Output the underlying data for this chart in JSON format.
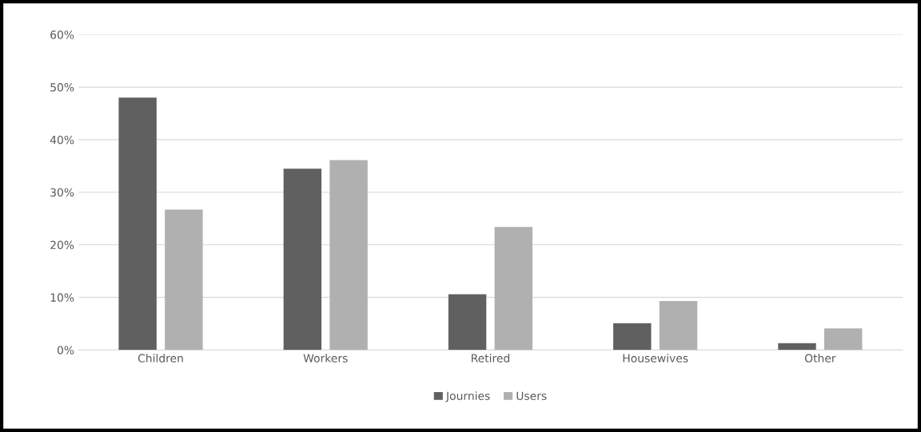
{
  "chart_data": {
    "type": "bar",
    "categories": [
      "Children",
      "Workers",
      "Retired",
      "Housewives",
      "Other"
    ],
    "series": [
      {
        "name": "Journies",
        "color": "#606060",
        "values": [
          48,
          34.5,
          10.6,
          5.1,
          1.3
        ]
      },
      {
        "name": "Users",
        "color": "#b0b0b0",
        "values": [
          26.7,
          36.1,
          23.4,
          9.3,
          4.1
        ]
      }
    ],
    "ylim": [
      0,
      60
    ],
    "yticks": [
      {
        "value": 0,
        "label": "0%"
      },
      {
        "value": 10,
        "label": "10%"
      },
      {
        "value": 20,
        "label": "20%"
      },
      {
        "value": 30,
        "label": "30%"
      },
      {
        "value": 40,
        "label": "40%"
      },
      {
        "value": 50,
        "label": "50%"
      },
      {
        "value": 60,
        "label": "60%"
      }
    ],
    "grid": "y",
    "legend": "bottom"
  }
}
